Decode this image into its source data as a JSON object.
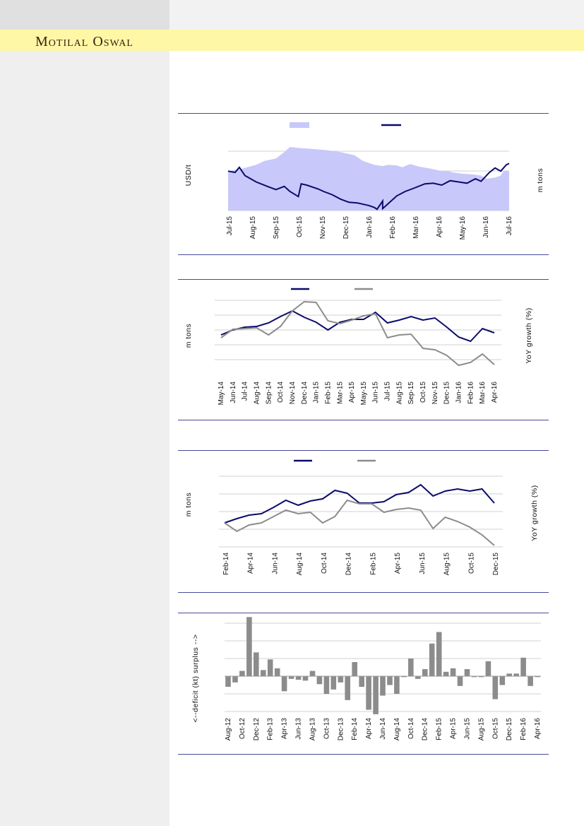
{
  "header": {
    "brand": "Motilal Oswal"
  },
  "chart_data": [
    {
      "type": "area+line",
      "title": "",
      "legend": [
        {
          "name": "",
          "kind": "area",
          "color": "#c8c8fa"
        },
        {
          "name": "",
          "kind": "line",
          "color": "#0b0b6b"
        }
      ],
      "ylabel_left": "USD/t",
      "ylabel_right": "m tons",
      "x_ticks": [
        "Jul-15",
        "Aug-15",
        "Sep-15",
        "Oct-15",
        "Nov-15",
        "Dec-15",
        "Jan-16",
        "Feb-16",
        "Mar-16",
        "Apr-16",
        "May-16",
        "Jun-16",
        "Jul-16"
      ],
      "area_profile": [
        [
          0,
          0.62
        ],
        [
          0.05,
          0.66
        ],
        [
          0.1,
          0.72
        ],
        [
          0.13,
          0.78
        ],
        [
          0.17,
          0.82
        ],
        [
          0.2,
          0.92
        ],
        [
          0.22,
          1.0
        ],
        [
          0.26,
          0.98
        ],
        [
          0.3,
          0.97
        ],
        [
          0.35,
          0.95
        ],
        [
          0.4,
          0.92
        ],
        [
          0.45,
          0.87
        ],
        [
          0.48,
          0.78
        ],
        [
          0.52,
          0.72
        ],
        [
          0.55,
          0.7
        ],
        [
          0.57,
          0.72
        ],
        [
          0.6,
          0.71
        ],
        [
          0.62,
          0.68
        ],
        [
          0.64,
          0.72
        ],
        [
          0.65,
          0.73
        ],
        [
          0.68,
          0.69
        ],
        [
          0.72,
          0.66
        ],
        [
          0.75,
          0.63
        ],
        [
          0.78,
          0.62
        ],
        [
          0.8,
          0.6
        ],
        [
          0.83,
          0.58
        ],
        [
          0.87,
          0.57
        ],
        [
          0.9,
          0.55
        ],
        [
          0.92,
          0.5
        ],
        [
          0.95,
          0.52
        ],
        [
          0.97,
          0.55
        ],
        [
          0.98,
          0.62
        ],
        [
          1.0,
          0.62
        ]
      ],
      "line_profile": [
        [
          0,
          0.62
        ],
        [
          0.025,
          0.6
        ],
        [
          0.04,
          0.68
        ],
        [
          0.06,
          0.55
        ],
        [
          0.1,
          0.45
        ],
        [
          0.14,
          0.38
        ],
        [
          0.17,
          0.33
        ],
        [
          0.2,
          0.38
        ],
        [
          0.22,
          0.3
        ],
        [
          0.25,
          0.22
        ],
        [
          0.26,
          0.42
        ],
        [
          0.28,
          0.4
        ],
        [
          0.32,
          0.34
        ],
        [
          0.34,
          0.3
        ],
        [
          0.37,
          0.25
        ],
        [
          0.4,
          0.18
        ],
        [
          0.43,
          0.13
        ],
        [
          0.46,
          0.12
        ],
        [
          0.5,
          0.08
        ],
        [
          0.52,
          0.05
        ],
        [
          0.55,
          0.15
        ],
        [
          0.53,
          0.02
        ],
        [
          0.55,
          0.03
        ],
        [
          0.58,
          0.15
        ],
        [
          0.6,
          0.23
        ],
        [
          0.63,
          0.3
        ],
        [
          0.66,
          0.35
        ],
        [
          0.7,
          0.42
        ],
        [
          0.73,
          0.43
        ],
        [
          0.76,
          0.4
        ],
        [
          0.79,
          0.47
        ],
        [
          0.82,
          0.45
        ],
        [
          0.85,
          0.43
        ],
        [
          0.88,
          0.5
        ],
        [
          0.9,
          0.46
        ],
        [
          0.93,
          0.6
        ],
        [
          0.95,
          0.67
        ],
        [
          0.97,
          0.62
        ],
        [
          0.99,
          0.72
        ],
        [
          1.0,
          0.74
        ]
      ]
    },
    {
      "type": "line",
      "title": "",
      "legend": [
        {
          "name": "",
          "color": "#0b0b6b"
        },
        {
          "name": "",
          "color": "#8c8c8c"
        }
      ],
      "ylabel_left": "m tons",
      "ylabel_right": "YoY growth (%)",
      "x_ticks": [
        "May-14",
        "Jun-14",
        "Jul-14",
        "Aug-14",
        "Sep-14",
        "Oct-14",
        "Nov-14",
        "Dec-14",
        "Jan-15",
        "Feb-15",
        "Mar-15",
        "Apr-15",
        "May-15",
        "Jun-15",
        "Jul-15",
        "Aug-15",
        "Sep-15",
        "Oct-15",
        "Nov-15",
        "Dec-15",
        "Jan-16",
        "Feb-16",
        "Mar-16",
        "Apr-16"
      ],
      "series": [
        {
          "name": "",
          "values": [
            2.6,
            3.3,
            3.7,
            3.8,
            4.3,
            5.2,
            6.0,
            5.1,
            4.4,
            3.3,
            4.4,
            4.8,
            4.8,
            5.8,
            4.3,
            4.7,
            5.2,
            4.7,
            5.0,
            3.7,
            2.3,
            1.7,
            3.5,
            2.9
          ]
        },
        {
          "name": "",
          "values": [
            2.2,
            3.4,
            3.5,
            3.6,
            2.6,
            3.8,
            6.0,
            7.3,
            7.2,
            4.6,
            4.2,
            4.7,
            5.3,
            5.6,
            2.2,
            2.6,
            2.7,
            0.7,
            0.5,
            -0.3,
            -1.7,
            -1.3,
            -0.1,
            -1.6
          ]
        }
      ]
    },
    {
      "type": "line",
      "title": "",
      "legend": [
        {
          "name": "",
          "color": "#0b0b6b"
        },
        {
          "name": "",
          "color": "#8c8c8c"
        }
      ],
      "ylabel_left": "m tons",
      "ylabel_right": "YoY growth (%)",
      "x_ticks": [
        "Feb-14",
        "Apr-14",
        "Jun-14",
        "Aug-14",
        "Oct-14",
        "Dec-14",
        "Feb-15",
        "Apr-15",
        "Jun-15",
        "Aug-15",
        "Oct-15",
        "Dec-15"
      ],
      "series": [
        {
          "name": "",
          "values": [
            0.7,
            1.0,
            1.25,
            1.35,
            1.8,
            2.3,
            1.95,
            2.25,
            2.4,
            3.0,
            2.8,
            2.1,
            2.1,
            2.2,
            2.7,
            2.85,
            3.4,
            2.6,
            2.95,
            3.1,
            2.95,
            3.1,
            2.1
          ]
        },
        {
          "name": "",
          "values": [
            0.7,
            0.1,
            0.55,
            0.7,
            1.15,
            1.6,
            1.35,
            1.45,
            0.7,
            1.15,
            2.3,
            2.05,
            2.05,
            1.45,
            1.65,
            1.75,
            1.6,
            0.3,
            1.1,
            0.8,
            0.4,
            -0.15,
            -0.9
          ]
        }
      ]
    },
    {
      "type": "bar",
      "title": "",
      "ylabel": "<--deficit    (kt)    surplus -->",
      "x_ticks": [
        "Aug-12",
        "Oct-12",
        "Dec-12",
        "Feb-13",
        "Apr-13",
        "Jun-13",
        "Aug-13",
        "Oct-13",
        "Dec-13",
        "Feb-14",
        "Apr-14",
        "Jun-14",
        "Aug-14",
        "Oct-14",
        "Dec-14",
        "Feb-15",
        "Apr-15",
        "Jun-15",
        "Aug-15",
        "Oct-15",
        "Dec-15",
        "Feb-16",
        "Apr-16"
      ],
      "values": [
        -12,
        -7,
        6,
        67,
        27,
        7,
        19,
        9,
        -17,
        -3,
        -4,
        -5,
        6,
        -9,
        -20,
        -15,
        -7,
        -27,
        16,
        -12,
        -38,
        -43,
        -22,
        -10,
        -20,
        -1,
        20,
        -3,
        8,
        37,
        50,
        5,
        9,
        -11,
        8,
        -1,
        -1,
        17,
        -26,
        -10,
        3,
        3,
        21,
        -11,
        -1
      ]
    }
  ]
}
